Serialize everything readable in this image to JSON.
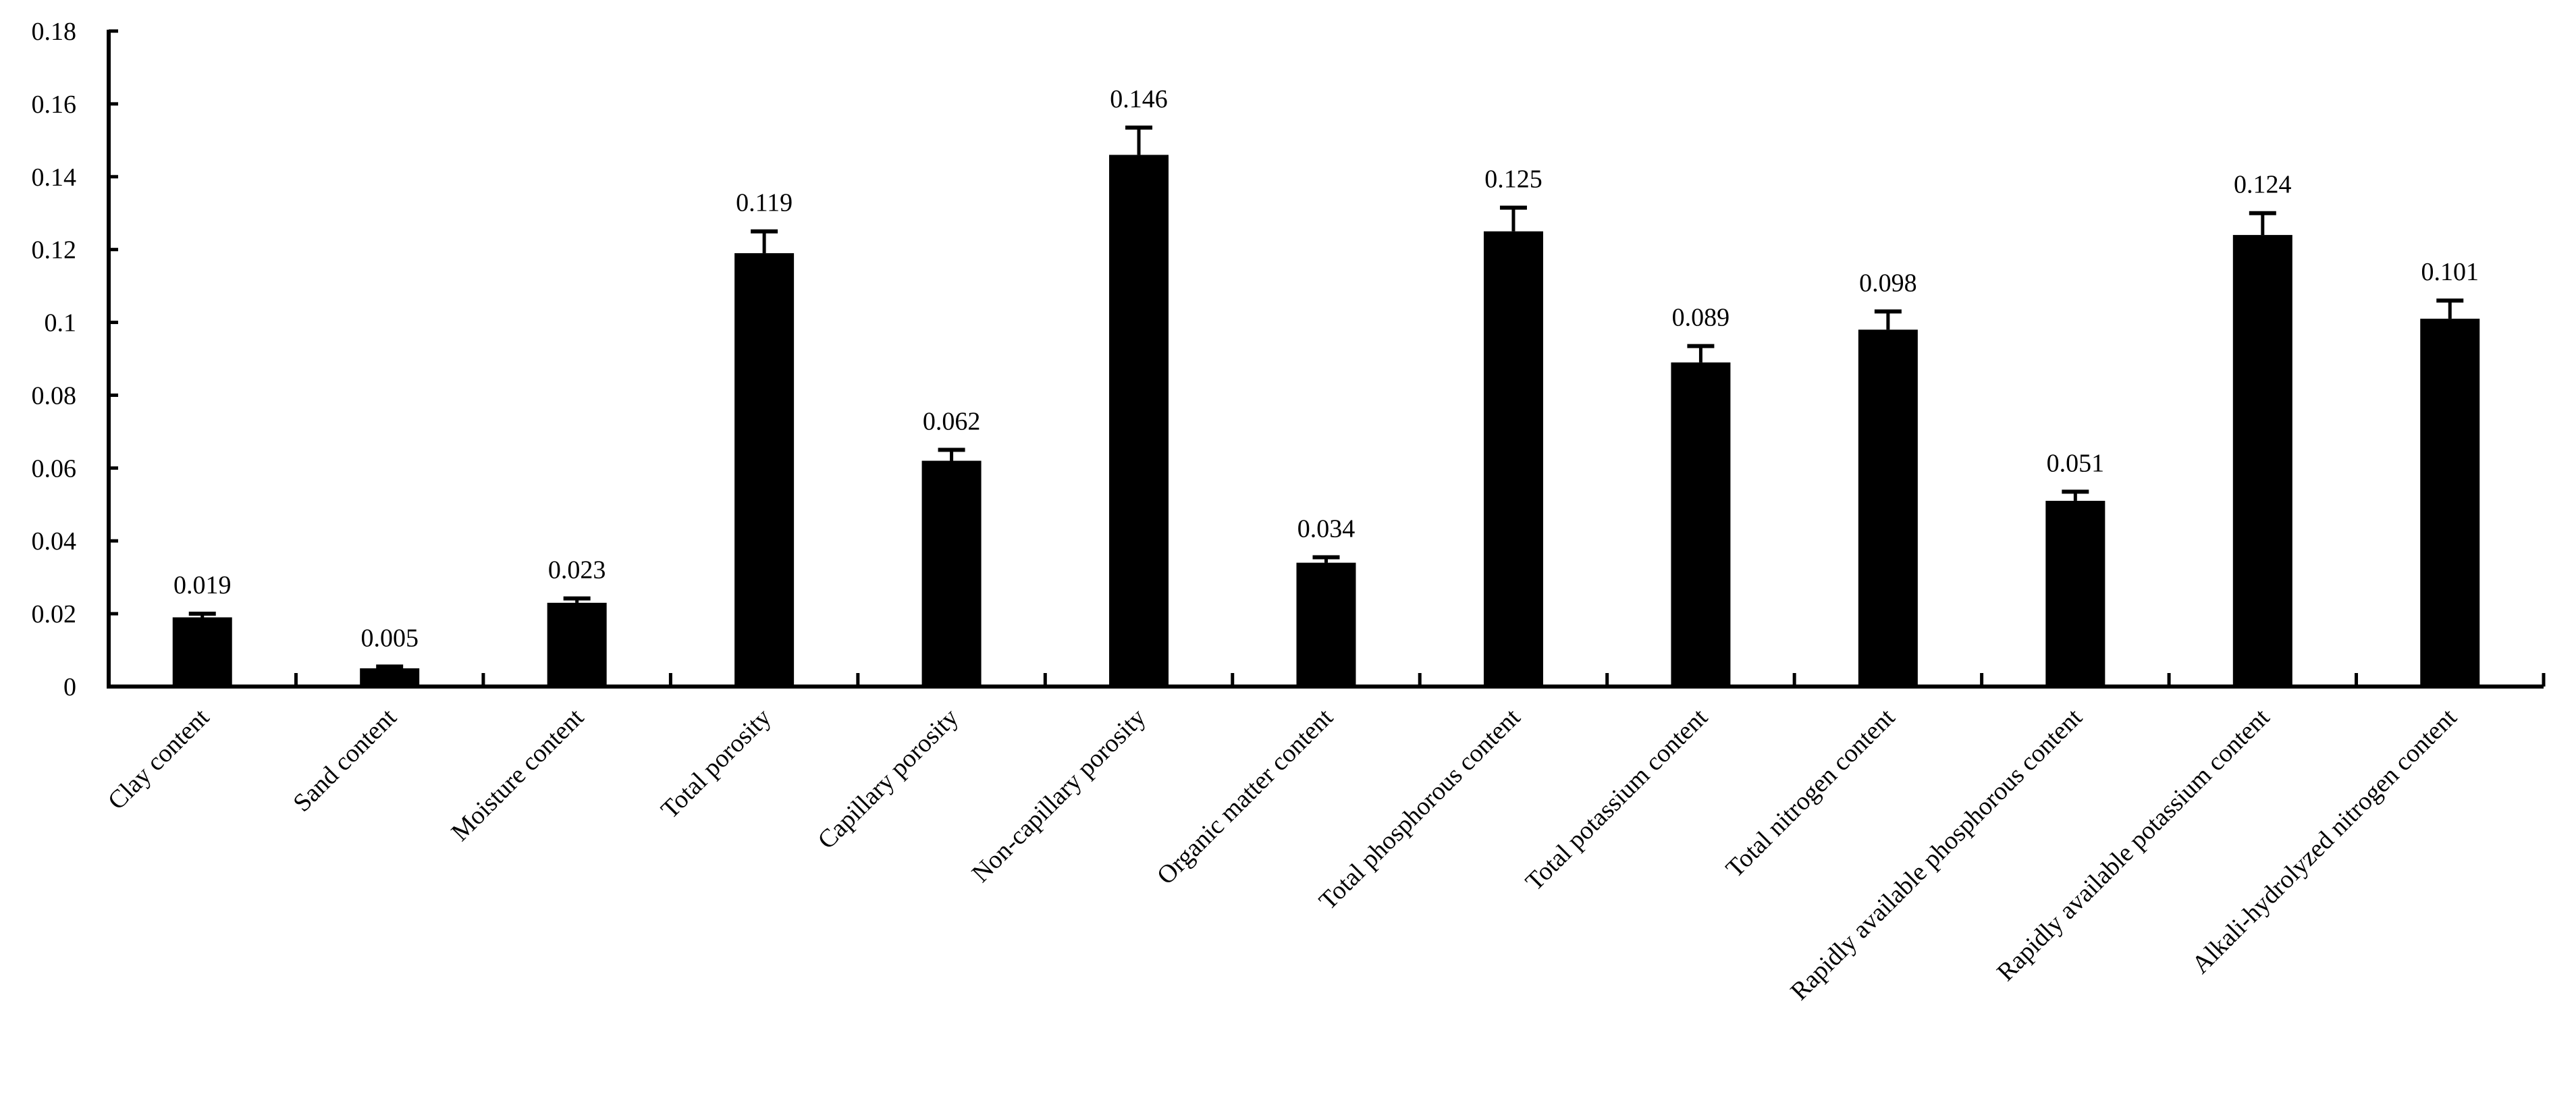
{
  "chart_data": {
    "type": "bar",
    "title": "",
    "xlabel": "",
    "ylabel": "",
    "ylim": [
      0,
      0.18
    ],
    "yticks": [
      "0",
      "0.02",
      "0.04",
      "0.06",
      "0.08",
      "0.1",
      "0.12",
      "0.14",
      "0.16",
      "0.18"
    ],
    "grid": false,
    "bar_color": "#000000",
    "categories": [
      "Clay content",
      "Sand content",
      "Moisture content",
      "Total porosity",
      "Capillary porosity",
      "Non-capillary porosity",
      "Organic matter content",
      "Total phosphorous content",
      "Total potassium content",
      "Total nitrogen content",
      "Rapidly available phosphorous content",
      "Rapidly available potassium content",
      "Alkali-hydrolyzed nitrogen content"
    ],
    "values": [
      0.019,
      0.005,
      0.023,
      0.119,
      0.062,
      0.146,
      0.034,
      0.125,
      0.089,
      0.098,
      0.051,
      0.124,
      0.101
    ],
    "value_labels": [
      "0.019",
      "0.005",
      "0.023",
      "0.119",
      "0.062",
      "0.146",
      "0.034",
      "0.125",
      "0.089",
      "0.098",
      "0.051",
      "0.124",
      "0.101"
    ],
    "error_upper": [
      0.001,
      0.0005,
      0.0012,
      0.006,
      0.003,
      0.0075,
      0.0015,
      0.0065,
      0.0045,
      0.005,
      0.0025,
      0.006,
      0.005
    ]
  }
}
